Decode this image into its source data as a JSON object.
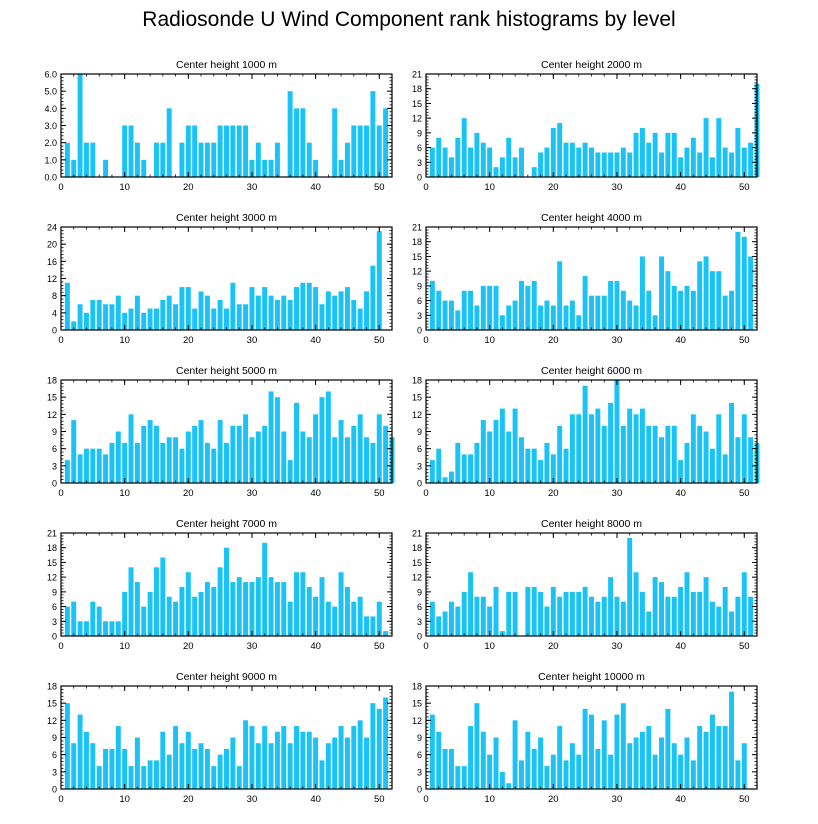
{
  "title": "Radiosonde U Wind Component rank histograms by level",
  "colors": {
    "bar": "#19c3f5",
    "axis": "#000000",
    "background": "#ffffff"
  },
  "chart_data": [
    {
      "type": "bar",
      "title": "Center height 1000 m",
      "xlim": [
        0,
        52
      ],
      "ylim": [
        0,
        6
      ],
      "xticks": [
        0,
        10,
        20,
        30,
        40,
        50
      ],
      "yticks": [
        0,
        1,
        2,
        3,
        4,
        5,
        6
      ],
      "ytick_decimals": 1,
      "values": [
        2,
        1,
        6,
        2,
        2,
        0,
        1,
        0,
        0,
        3,
        3,
        2,
        1,
        0,
        2,
        2,
        4,
        0,
        2,
        3,
        3,
        2,
        2,
        2,
        3,
        3,
        3,
        3,
        3,
        1,
        2,
        1,
        1,
        2,
        0,
        5,
        4,
        4,
        2,
        1,
        0,
        0,
        4,
        1,
        2,
        3,
        3,
        3,
        5,
        3,
        4
      ]
    },
    {
      "type": "bar",
      "title": "Center height 2000 m",
      "xlim": [
        0,
        52
      ],
      "ylim": [
        0,
        21
      ],
      "xticks": [
        0,
        10,
        20,
        30,
        40,
        50
      ],
      "yticks": [
        0,
        3,
        6,
        9,
        12,
        15,
        18,
        21
      ],
      "ytick_decimals": 0,
      "values": [
        6,
        8,
        6,
        4,
        8,
        12,
        6,
        9,
        7,
        6,
        2,
        4,
        8,
        4,
        6,
        0,
        2,
        5,
        6,
        10,
        11,
        7,
        7,
        6,
        7,
        6,
        5,
        5,
        5,
        5,
        6,
        5,
        9,
        10,
        7,
        9,
        5,
        9,
        9,
        4,
        6,
        8,
        5,
        12,
        4,
        12,
        6,
        5,
        10,
        6,
        7,
        19
      ]
    },
    {
      "type": "bar",
      "title": "Center height 3000 m",
      "xlim": [
        0,
        52
      ],
      "ylim": [
        0,
        24
      ],
      "xticks": [
        0,
        10,
        20,
        30,
        40,
        50
      ],
      "yticks": [
        0,
        4,
        8,
        12,
        16,
        20,
        24
      ],
      "ytick_decimals": 0,
      "values": [
        11,
        2,
        6,
        4,
        7,
        7,
        6,
        6,
        8,
        4,
        5,
        8,
        4,
        5,
        5,
        7,
        8,
        6,
        10,
        10,
        5,
        9,
        8,
        5,
        7,
        5,
        11,
        6,
        6,
        10,
        8,
        10,
        8,
        7,
        8,
        7,
        10,
        11,
        11,
        10,
        6,
        9,
        8,
        9,
        10,
        7,
        5,
        9,
        15,
        23
      ]
    },
    {
      "type": "bar",
      "title": "Center height 4000 m",
      "xlim": [
        0,
        52
      ],
      "ylim": [
        0,
        21
      ],
      "xticks": [
        0,
        10,
        20,
        30,
        40,
        50
      ],
      "yticks": [
        0,
        3,
        6,
        9,
        12,
        15,
        18,
        21
      ],
      "ytick_decimals": 0,
      "values": [
        10,
        8,
        6,
        6,
        4,
        8,
        8,
        5,
        9,
        9,
        9,
        3,
        5,
        6,
        10,
        9,
        10,
        5,
        6,
        5,
        14,
        5,
        6,
        3,
        11,
        7,
        7,
        7,
        10,
        10,
        8,
        6,
        5,
        15,
        8,
        3,
        15,
        12,
        9,
        8,
        9,
        8,
        14,
        15,
        12,
        12,
        7,
        8,
        20,
        19,
        15
      ]
    },
    {
      "type": "bar",
      "title": "Center height 5000 m",
      "xlim": [
        0,
        52
      ],
      "ylim": [
        0,
        18
      ],
      "xticks": [
        0,
        10,
        20,
        30,
        40,
        50
      ],
      "yticks": [
        0,
        3,
        6,
        9,
        12,
        15,
        18
      ],
      "ytick_decimals": 0,
      "values": [
        4,
        11,
        5,
        6,
        6,
        6,
        5,
        7,
        9,
        7,
        12,
        7,
        10,
        11,
        10,
        7,
        8,
        8,
        6,
        9,
        10,
        11,
        7,
        6,
        11,
        7,
        10,
        10,
        12,
        8,
        9,
        10,
        16,
        15,
        9,
        4,
        14,
        9,
        8,
        12,
        15,
        16,
        8,
        11,
        8,
        10,
        12,
        8,
        7,
        12,
        10,
        8
      ]
    },
    {
      "type": "bar",
      "title": "Center height 6000 m",
      "xlim": [
        0,
        52
      ],
      "ylim": [
        0,
        18
      ],
      "xticks": [
        0,
        10,
        20,
        30,
        40,
        50
      ],
      "yticks": [
        0,
        3,
        6,
        9,
        12,
        15,
        18
      ],
      "ytick_decimals": 0,
      "values": [
        4,
        6,
        1,
        2,
        7,
        5,
        5,
        7,
        11,
        9,
        11,
        13,
        9,
        13,
        8,
        6,
        6,
        4,
        7,
        5,
        10,
        6,
        12,
        12,
        17,
        12,
        13,
        10,
        14,
        18,
        10,
        13,
        12,
        13,
        10,
        10,
        8,
        10,
        10,
        4,
        7,
        12,
        10,
        9,
        6,
        12,
        5,
        14,
        8,
        12,
        8,
        7
      ]
    },
    {
      "type": "bar",
      "title": "Center height 7000 m",
      "xlim": [
        0,
        52
      ],
      "ylim": [
        0,
        21
      ],
      "xticks": [
        0,
        10,
        20,
        30,
        40,
        50
      ],
      "yticks": [
        0,
        3,
        6,
        9,
        12,
        15,
        18,
        21
      ],
      "ytick_decimals": 0,
      "values": [
        6,
        7,
        3,
        3,
        7,
        6,
        3,
        3,
        3,
        9,
        14,
        11,
        6,
        9,
        14,
        16,
        8,
        7,
        10,
        13,
        8,
        9,
        11,
        10,
        14,
        18,
        11,
        12,
        11,
        11,
        12,
        19,
        12,
        11,
        11,
        7,
        13,
        13,
        10,
        8,
        12,
        7,
        6,
        13,
        10,
        7,
        8,
        4,
        4,
        7,
        1
      ]
    },
    {
      "type": "bar",
      "title": "Center height 8000 m",
      "xlim": [
        0,
        52
      ],
      "ylim": [
        0,
        21
      ],
      "xticks": [
        0,
        10,
        20,
        30,
        40,
        50
      ],
      "yticks": [
        0,
        3,
        6,
        9,
        12,
        15,
        18,
        21
      ],
      "ytick_decimals": 0,
      "values": [
        7,
        4,
        5,
        7,
        6,
        9,
        13,
        8,
        8,
        6,
        10,
        1,
        9,
        9,
        0,
        10,
        10,
        9,
        6,
        10,
        8,
        9,
        9,
        9,
        10,
        8,
        7,
        8,
        12,
        8,
        7,
        20,
        13,
        9,
        5,
        12,
        11,
        8,
        8,
        10,
        13,
        9,
        9,
        12,
        7,
        6,
        10,
        5,
        8,
        13,
        8
      ]
    },
    {
      "type": "bar",
      "title": "Center height 9000 m",
      "xlim": [
        0,
        52
      ],
      "ylim": [
        0,
        18
      ],
      "xticks": [
        0,
        10,
        20,
        30,
        40,
        50
      ],
      "yticks": [
        0,
        3,
        6,
        9,
        12,
        15,
        18
      ],
      "ytick_decimals": 0,
      "values": [
        15,
        8,
        13,
        10,
        8,
        4,
        7,
        7,
        11,
        7,
        4,
        9,
        4,
        5,
        5,
        10,
        6,
        11,
        8,
        10,
        7,
        8,
        7,
        4,
        6,
        7,
        9,
        4,
        12,
        11,
        8,
        11,
        8,
        10,
        11,
        8,
        11,
        10,
        10,
        9,
        5,
        8,
        9,
        11,
        9,
        11,
        12,
        9,
        15,
        14,
        16
      ]
    },
    {
      "type": "bar",
      "title": "Center height 10000 m",
      "xlim": [
        0,
        52
      ],
      "ylim": [
        0,
        18
      ],
      "xticks": [
        0,
        10,
        20,
        30,
        40,
        50
      ],
      "yticks": [
        0,
        3,
        6,
        9,
        12,
        15,
        18
      ],
      "ytick_decimals": 0,
      "values": [
        13,
        10,
        7,
        7,
        4,
        4,
        11,
        15,
        10,
        6,
        9,
        3,
        1,
        12,
        5,
        10,
        7,
        9,
        4,
        6,
        11,
        5,
        8,
        6,
        14,
        13,
        7,
        12,
        6,
        13,
        15,
        8,
        9,
        10,
        11,
        6,
        9,
        14,
        8,
        6,
        9,
        5,
        11,
        10,
        13,
        11,
        11,
        17,
        5,
        8
      ]
    }
  ]
}
